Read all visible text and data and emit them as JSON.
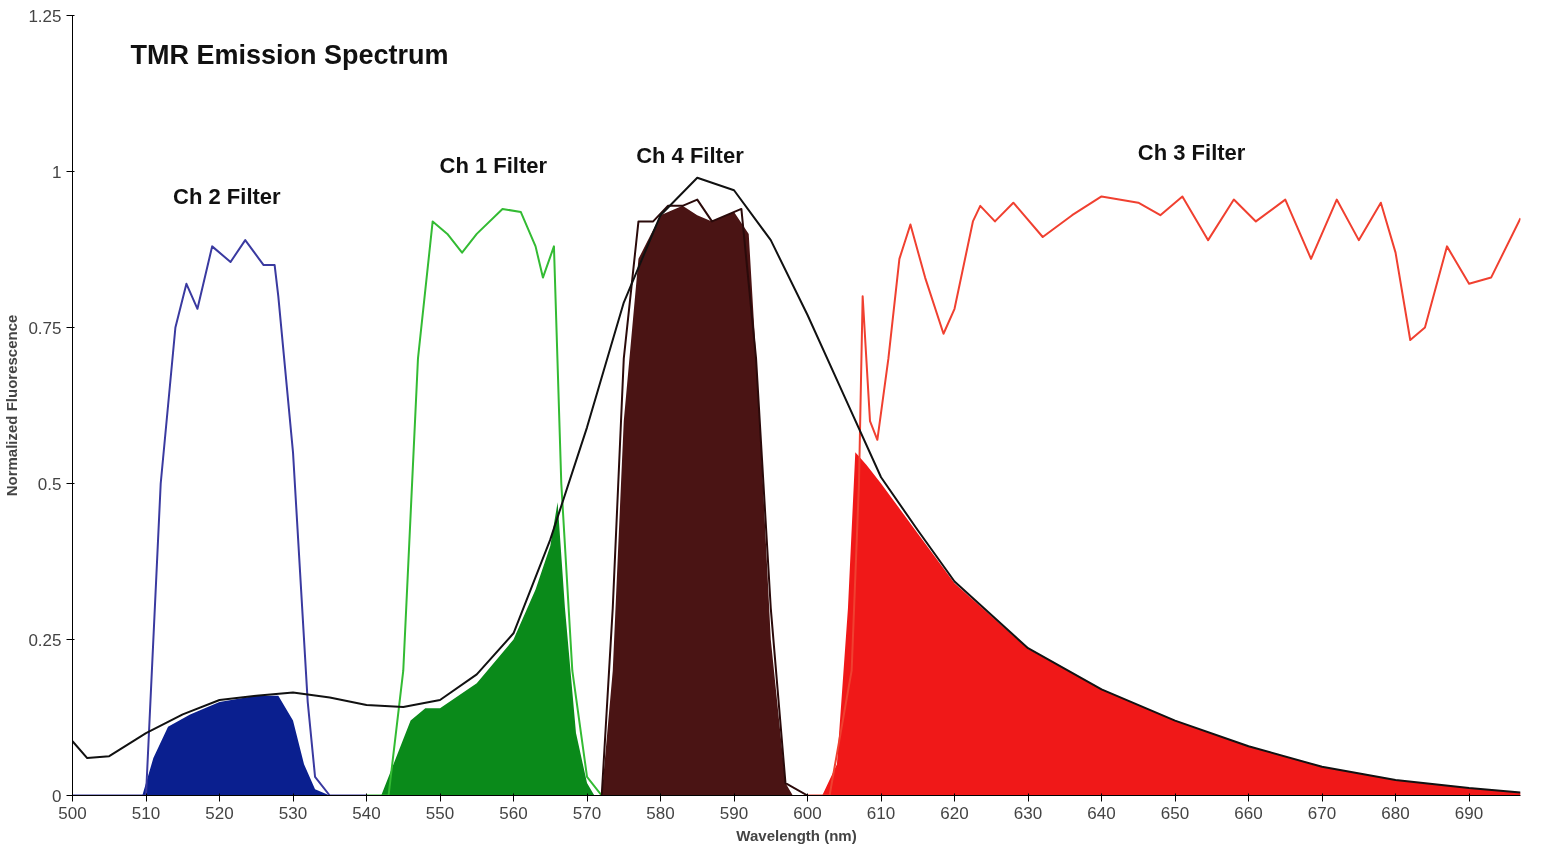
{
  "chart_data": {
    "type": "line",
    "title": "TMR Emission Spectrum",
    "xlabel": "Wavelength (nm)",
    "ylabel": "Normalized Fluorescence",
    "xlim": [
      500,
      697
    ],
    "xticks": [
      500,
      510,
      520,
      530,
      540,
      550,
      560,
      570,
      580,
      590,
      600,
      610,
      620,
      630,
      640,
      650,
      660,
      670,
      680,
      690
    ],
    "ylim": [
      0,
      1.25
    ],
    "yticks": [
      0,
      0.25,
      0.5,
      0.75,
      1,
      1.25
    ],
    "grid": false,
    "line_style": "solid",
    "marker": "none",
    "series": [
      {
        "type": "area",
        "color": "#0a1f8f",
        "x": [
          509.5,
          511,
          513,
          516,
          520,
          525,
          528,
          530,
          531.5,
          533,
          535
        ],
        "values": [
          0,
          0.06,
          0.11,
          0.13,
          0.15,
          0.16,
          0.16,
          0.12,
          0.05,
          0.01,
          0
        ]
      },
      {
        "type": "area",
        "color": "#0a8a1a",
        "x": [
          542,
          544,
          546,
          548,
          550,
          555,
          560,
          563,
          565,
          566,
          567,
          568.5,
          570,
          571
        ],
        "values": [
          0,
          0.06,
          0.12,
          0.14,
          0.14,
          0.18,
          0.25,
          0.33,
          0.4,
          0.47,
          0.3,
          0.1,
          0.02,
          0
        ]
      },
      {
        "type": "area",
        "color": "#4a1414",
        "x": [
          572,
          573.5,
          575,
          577,
          580,
          583,
          585,
          587,
          590,
          592,
          593.5,
          595,
          597,
          598
        ],
        "values": [
          0,
          0.2,
          0.6,
          0.86,
          0.93,
          0.945,
          0.93,
          0.92,
          0.935,
          0.9,
          0.6,
          0.25,
          0.02,
          0
        ]
      },
      {
        "type": "area",
        "color": "#f01818",
        "x": [
          602,
          604,
          605.5,
          606.5,
          608,
          610,
          615,
          620,
          630,
          640,
          650,
          660,
          670,
          680,
          690,
          697
        ],
        "values": [
          0,
          0.05,
          0.3,
          0.55,
          0.53,
          0.5,
          0.42,
          0.34,
          0.235,
          0.17,
          0.12,
          0.079,
          0.046,
          0.025,
          0.012,
          0.005
        ]
      },
      {
        "name": "Ch 2 Filter",
        "color": "#3a3aa0",
        "x": [
          500,
          510,
          512,
          514,
          515.5,
          517,
          519,
          521.5,
          523.5,
          526,
          527.5,
          528,
          530,
          532,
          533,
          535,
          540
        ],
        "values": [
          0,
          0,
          0.5,
          0.75,
          0.82,
          0.78,
          0.88,
          0.855,
          0.89,
          0.85,
          0.85,
          0.8,
          0.55,
          0.15,
          0.03,
          0,
          0
        ]
      },
      {
        "name": "Ch 1 Filter",
        "color": "#33bb33",
        "x": [
          540,
          543,
          545,
          547,
          549,
          551,
          553,
          555,
          558.5,
          561,
          563,
          564,
          565.5,
          566.5,
          568,
          570,
          572
        ],
        "values": [
          0,
          0,
          0.2,
          0.7,
          0.92,
          0.9,
          0.87,
          0.9,
          0.94,
          0.935,
          0.88,
          0.83,
          0.88,
          0.5,
          0.2,
          0.03,
          0
        ]
      },
      {
        "name": "Ch 4 Filter",
        "color": "#2a0a0a",
        "x": [
          572,
          573.5,
          575,
          577,
          579,
          581,
          583,
          585,
          587,
          589,
          591,
          593,
          595,
          597,
          600
        ],
        "values": [
          0,
          0.3,
          0.7,
          0.92,
          0.92,
          0.945,
          0.945,
          0.955,
          0.92,
          0.93,
          0.94,
          0.7,
          0.3,
          0.02,
          0
        ]
      },
      {
        "name": "Ch 3 Filter",
        "color": "#f04030",
        "x": [
          600,
          603,
          606,
          607,
          607.5,
          608.5,
          609.5,
          611,
          612.5,
          614,
          616,
          618.5,
          620,
          622.5,
          623.5,
          625.5,
          628,
          632,
          636,
          640,
          645,
          648,
          651,
          654.5,
          658,
          661,
          665,
          668.5,
          672,
          675,
          678,
          680,
          682,
          684,
          687,
          690,
          693,
          697
        ],
        "values": [
          0,
          0,
          0.2,
          0.5,
          0.8,
          0.6,
          0.57,
          0.7,
          0.86,
          0.915,
          0.83,
          0.74,
          0.78,
          0.92,
          0.945,
          0.92,
          0.95,
          0.895,
          0.93,
          0.96,
          0.95,
          0.93,
          0.96,
          0.89,
          0.955,
          0.92,
          0.955,
          0.86,
          0.955,
          0.89,
          0.95,
          0.87,
          0.73,
          0.75,
          0.88,
          0.82,
          0.83,
          0.925
        ]
      },
      {
        "color": "#111111",
        "x": [
          500,
          502,
          505,
          510,
          515,
          520,
          525,
          530,
          535,
          540,
          545,
          550,
          555,
          560,
          565,
          570,
          575,
          580,
          585,
          590,
          595,
          600,
          605,
          610,
          615,
          620,
          630,
          640,
          650,
          660,
          670,
          680,
          690,
          697
        ],
        "values": [
          0.087,
          0.06,
          0.063,
          0.1,
          0.13,
          0.153,
          0.16,
          0.165,
          0.157,
          0.145,
          0.142,
          0.153,
          0.194,
          0.26,
          0.41,
          0.59,
          0.79,
          0.93,
          0.99,
          0.97,
          0.89,
          0.77,
          0.64,
          0.51,
          0.425,
          0.343,
          0.236,
          0.17,
          0.12,
          0.079,
          0.046,
          0.025,
          0.012,
          0.005
        ]
      }
    ]
  }
}
